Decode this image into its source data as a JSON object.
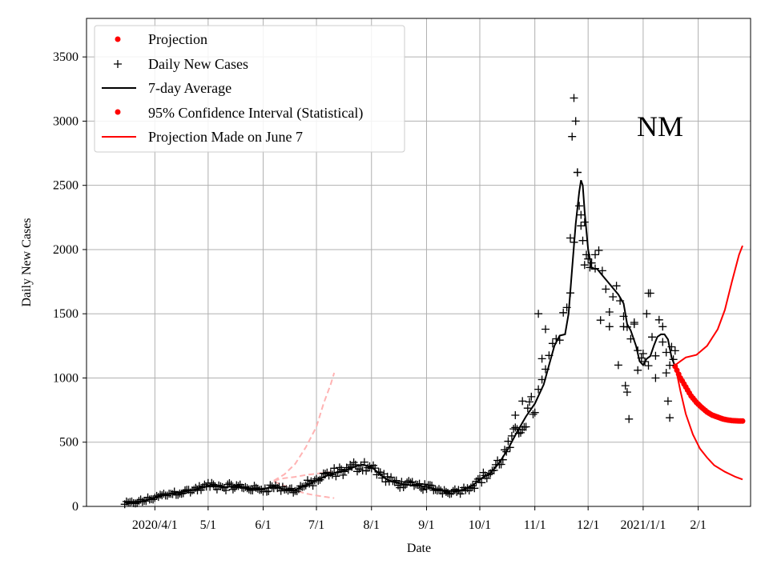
{
  "chart_data": {
    "type": "line",
    "title": "",
    "annotation": "NM",
    "xlabel": "Date",
    "ylabel": "Daily New Cases",
    "x_unit": "days since 2020-03-01",
    "xlim": [
      -7.5,
      366.5
    ],
    "ylim": [
      0,
      3800
    ],
    "grid": true,
    "legend_position": "top-left",
    "x_ticks": [
      {
        "day": 31,
        "label": "2020/4/1"
      },
      {
        "day": 61,
        "label": "5/1"
      },
      {
        "day": 92,
        "label": "6/1"
      },
      {
        "day": 122,
        "label": "7/1"
      },
      {
        "day": 153,
        "label": "8/1"
      },
      {
        "day": 184,
        "label": "9/1"
      },
      {
        "day": 214,
        "label": "10/1"
      },
      {
        "day": 245,
        "label": "11/1"
      },
      {
        "day": 275,
        "label": "12/1"
      },
      {
        "day": 306,
        "label": "2021/1/1"
      },
      {
        "day": 337,
        "label": "2/1"
      }
    ],
    "y_ticks": [
      0,
      500,
      1000,
      1500,
      2000,
      2500,
      3000,
      3500
    ],
    "legend": [
      {
        "label": "Projection",
        "style": "dot",
        "color": "#ff0000"
      },
      {
        "label": "Daily New Cases",
        "style": "plus",
        "color": "#000000"
      },
      {
        "label": "7-day Average",
        "style": "line",
        "color": "#000000"
      },
      {
        "label": "95% Confidence Interval (Statistical)",
        "style": "dot",
        "color": "#ff0000"
      },
      {
        "label": "Projection Made on June 7",
        "style": "line",
        "color": "#ff0000"
      }
    ],
    "colors": {
      "cases": "#000000",
      "average": "#000000",
      "projection": "#ff0000",
      "june_projection": "#ffb3b3",
      "grid": "#b0b0b0"
    },
    "series": [
      {
        "name": "7-day Average",
        "points": [
          [
            15,
            22
          ],
          [
            20,
            30
          ],
          [
            25,
            45
          ],
          [
            30,
            65
          ],
          [
            35,
            85
          ],
          [
            40,
            100
          ],
          [
            45,
            110
          ],
          [
            50,
            120
          ],
          [
            55,
            135
          ],
          [
            60,
            155
          ],
          [
            62,
            165
          ],
          [
            65,
            160
          ],
          [
            70,
            150
          ],
          [
            75,
            155
          ],
          [
            80,
            150
          ],
          [
            85,
            140
          ],
          [
            90,
            130
          ],
          [
            95,
            145
          ],
          [
            98,
            155
          ],
          [
            100,
            148
          ],
          [
            103,
            135
          ],
          [
            106,
            130
          ],
          [
            110,
            125
          ],
          [
            112,
            140
          ],
          [
            115,
            160
          ],
          [
            118,
            175
          ],
          [
            121,
            195
          ],
          [
            124,
            215
          ],
          [
            127,
            235
          ],
          [
            130,
            250
          ],
          [
            133,
            265
          ],
          [
            136,
            275
          ],
          [
            139,
            285
          ],
          [
            142,
            300
          ],
          [
            145,
            315
          ],
          [
            148,
            325
          ],
          [
            151,
            315
          ],
          [
            154,
            295
          ],
          [
            157,
            260
          ],
          [
            160,
            225
          ],
          [
            163,
            200
          ],
          [
            167,
            185
          ],
          [
            170,
            175
          ],
          [
            175,
            165
          ],
          [
            180,
            160
          ],
          [
            185,
            150
          ],
          [
            190,
            130
          ],
          [
            195,
            120
          ],
          [
            200,
            120
          ],
          [
            205,
            130
          ],
          [
            210,
            165
          ],
          [
            215,
            220
          ],
          [
            220,
            260
          ],
          [
            225,
            340
          ],
          [
            230,
            450
          ],
          [
            235,
            580
          ],
          [
            240,
            700
          ],
          [
            245,
            800
          ],
          [
            250,
            950
          ],
          [
            253,
            1100
          ],
          [
            256,
            1250
          ],
          [
            259,
            1330
          ],
          [
            262,
            1340
          ],
          [
            264,
            1500
          ],
          [
            266,
            1850
          ],
          [
            268,
            2200
          ],
          [
            270,
            2450
          ],
          [
            271,
            2540
          ],
          [
            272,
            2500
          ],
          [
            273,
            2300
          ],
          [
            275,
            2000
          ],
          [
            277,
            1850
          ],
          [
            280,
            1850
          ],
          [
            283,
            1800
          ],
          [
            286,
            1750
          ],
          [
            289,
            1700
          ],
          [
            292,
            1650
          ],
          [
            295,
            1580
          ],
          [
            297,
            1420
          ],
          [
            299,
            1370
          ],
          [
            302,
            1250
          ],
          [
            304,
            1130
          ],
          [
            306,
            1100
          ],
          [
            308,
            1150
          ],
          [
            310,
            1170
          ],
          [
            312,
            1250
          ],
          [
            314,
            1320
          ],
          [
            316,
            1340
          ],
          [
            318,
            1340
          ],
          [
            320,
            1300
          ],
          [
            322,
            1160
          ],
          [
            324,
            1090
          ]
        ]
      },
      {
        "name": "Projection (central)",
        "points": [
          [
            324,
            1090
          ],
          [
            327,
            1000
          ],
          [
            330,
            930
          ],
          [
            333,
            860
          ],
          [
            336,
            810
          ],
          [
            339,
            770
          ],
          [
            342,
            735
          ],
          [
            345,
            710
          ],
          [
            348,
            695
          ],
          [
            351,
            680
          ],
          [
            354,
            672
          ],
          [
            357,
            667
          ],
          [
            360,
            665
          ],
          [
            362,
            665
          ]
        ]
      },
      {
        "name": "95% CI upper",
        "points": [
          [
            324,
            1100
          ],
          [
            327,
            1130
          ],
          [
            330,
            1160
          ],
          [
            336,
            1180
          ],
          [
            342,
            1250
          ],
          [
            348,
            1380
          ],
          [
            352,
            1530
          ],
          [
            356,
            1750
          ],
          [
            360,
            1960
          ],
          [
            362,
            2030
          ]
        ]
      },
      {
        "name": "95% CI lower",
        "points": [
          [
            324,
            1100
          ],
          [
            327,
            900
          ],
          [
            330,
            720
          ],
          [
            334,
            560
          ],
          [
            338,
            450
          ],
          [
            342,
            380
          ],
          [
            346,
            320
          ],
          [
            352,
            270
          ],
          [
            358,
            230
          ],
          [
            362,
            210
          ]
        ]
      },
      {
        "name": "Projection Made on June 7 (central)",
        "points": [
          [
            98,
            200
          ],
          [
            104,
            220
          ],
          [
            110,
            230
          ],
          [
            116,
            245
          ],
          [
            122,
            255
          ],
          [
            128,
            265
          ],
          [
            132,
            270
          ]
        ]
      },
      {
        "name": "Projection Made on June 7 (upper)",
        "points": [
          [
            98,
            200
          ],
          [
            104,
            250
          ],
          [
            110,
            330
          ],
          [
            116,
            460
          ],
          [
            122,
            620
          ],
          [
            126,
            800
          ],
          [
            130,
            950
          ],
          [
            132,
            1040
          ]
        ]
      },
      {
        "name": "Projection Made on June 7 (lower)",
        "points": [
          [
            98,
            195
          ],
          [
            104,
            160
          ],
          [
            110,
            125
          ],
          [
            116,
            100
          ],
          [
            122,
            85
          ],
          [
            128,
            72
          ],
          [
            132,
            65
          ]
        ]
      }
    ],
    "daily_new_cases_pattern": {
      "first_day": 14,
      "last_day": 324,
      "spread": 0.14
    },
    "daily_new_cases_outliers": [
      [
        265,
        2090
      ],
      [
        266,
        2880
      ],
      [
        267,
        3180
      ],
      [
        268,
        3000
      ],
      [
        269,
        2600
      ],
      [
        270,
        2340
      ],
      [
        271,
        2270
      ],
      [
        272,
        2070
      ],
      [
        273,
        1880
      ],
      [
        274,
        1960
      ],
      [
        276,
        1860
      ],
      [
        279,
        1960
      ],
      [
        282,
        1450
      ],
      [
        287,
        1400
      ],
      [
        292,
        1100
      ],
      [
        295,
        1480
      ],
      [
        296,
        940
      ],
      [
        297,
        890
      ],
      [
        298,
        680
      ],
      [
        301,
        1420
      ],
      [
        303,
        1060
      ],
      [
        306,
        1190
      ],
      [
        308,
        1500
      ],
      [
        309,
        1660
      ],
      [
        310,
        1660
      ],
      [
        313,
        1000
      ],
      [
        317,
        1280
      ],
      [
        319,
        1040
      ],
      [
        320,
        820
      ],
      [
        321,
        690
      ],
      [
        247,
        1500
      ],
      [
        249,
        1150
      ],
      [
        251,
        1380
      ],
      [
        234,
        710
      ],
      [
        238,
        820
      ]
    ]
  }
}
